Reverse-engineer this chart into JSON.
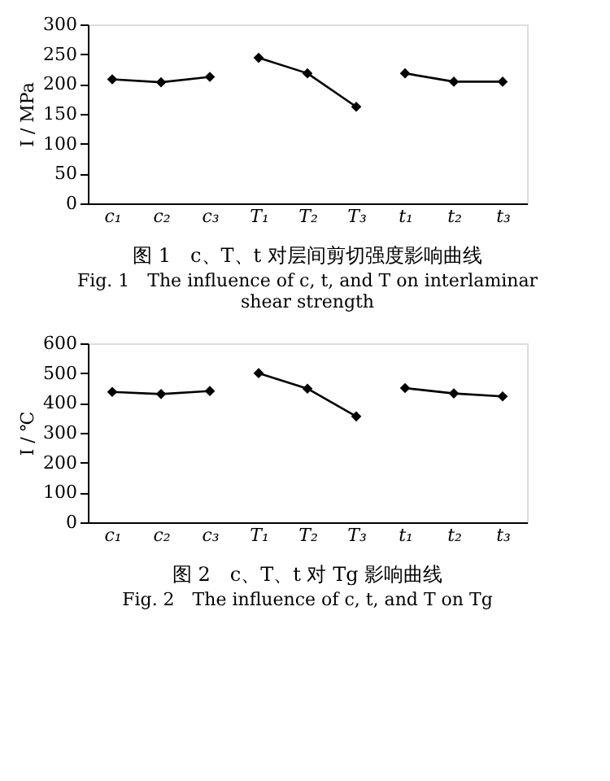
{
  "chart_data": [
    {
      "type": "line",
      "title": "图 1　c、T、t 对层间剪切强度影响曲线",
      "annotations": [
        "Fig. 1　The influence of c, t, and T on interlaminar shear strength"
      ],
      "ylabel": "I / MPa",
      "categories": [
        "c₁",
        "c₂",
        "c₃",
        "T₁",
        "T₂",
        "T₃",
        "t₁",
        "t₂",
        "t₃"
      ],
      "ylim": [
        0,
        300
      ],
      "yticks": [
        0,
        50,
        100,
        150,
        200,
        250,
        300
      ],
      "grid": false,
      "legend": false,
      "marker": "diamond",
      "line_style": "solid",
      "series": [
        {
          "color": "#000000",
          "values": [
            208,
            203,
            212,
            null,
            null,
            null,
            null,
            null,
            null
          ]
        },
        {
          "color": "#000000",
          "values": [
            null,
            null,
            null,
            244,
            218,
            162,
            null,
            null,
            null
          ]
        },
        {
          "color": "#000000",
          "values": [
            null,
            null,
            null,
            null,
            null,
            null,
            218,
            204,
            204
          ]
        }
      ]
    },
    {
      "type": "line",
      "title": "图 2　c、T、t 对 Tg 影响曲线",
      "annotations": [
        "Fig. 2　The influence of c, t, and T on Tg"
      ],
      "ylabel": "I / ℃",
      "categories": [
        "c₁",
        "c₂",
        "c₃",
        "T₁",
        "T₂",
        "T₃",
        "t₁",
        "t₂",
        "t₃"
      ],
      "ylim": [
        0,
        600
      ],
      "yticks": [
        0,
        100,
        200,
        300,
        400,
        500,
        600
      ],
      "grid": false,
      "legend": false,
      "marker": "diamond",
      "line_style": "solid",
      "series": [
        {
          "color": "#000000",
          "values": [
            437,
            430,
            440,
            null,
            null,
            null,
            null,
            null,
            null
          ]
        },
        {
          "color": "#000000",
          "values": [
            null,
            null,
            null,
            500,
            448,
            355,
            null,
            null,
            null
          ]
        },
        {
          "color": "#000000",
          "values": [
            null,
            null,
            null,
            null,
            null,
            null,
            450,
            432,
            422
          ]
        }
      ]
    }
  ]
}
